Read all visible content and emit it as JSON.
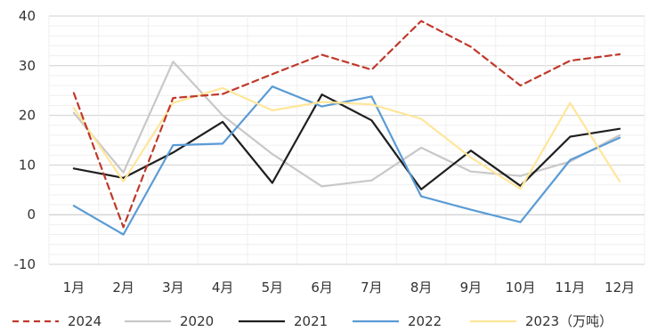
{
  "chart_data": {
    "type": "line",
    "categories": [
      "1月",
      "2月",
      "3月",
      "4月",
      "5月",
      "6月",
      "7月",
      "8月",
      "9月",
      "10月",
      "11月",
      "12月"
    ],
    "ylim": [
      -10,
      40
    ],
    "yticks": [
      -10,
      0,
      10,
      20,
      30,
      40
    ],
    "grid": true,
    "legend_position": "bottom",
    "series": [
      {
        "name": "2024",
        "color": "#c0392b",
        "dashed": true,
        "values": [
          24.5,
          -2.5,
          23.5,
          24.3,
          28.3,
          32.2,
          29.2,
          39.0,
          33.8,
          26.0,
          31.0,
          32.3
        ]
      },
      {
        "name": "2020",
        "color": "#c8c8c8",
        "dashed": false,
        "values": [
          20.5,
          8.5,
          30.8,
          20.0,
          12.2,
          5.7,
          6.9,
          13.5,
          8.7,
          7.8,
          10.7,
          16.0
        ]
      },
      {
        "name": "2021",
        "color": "#1f1f1f",
        "dashed": false,
        "values": [
          9.3,
          7.4,
          12.5,
          18.7,
          6.4,
          24.2,
          19.0,
          5.1,
          12.9,
          5.8,
          15.7,
          17.3
        ]
      },
      {
        "name": "2022",
        "color": "#5b9bd5",
        "dashed": false,
        "values": [
          1.8,
          -4.0,
          14.0,
          14.3,
          25.8,
          21.8,
          23.8,
          3.7,
          1.0,
          -1.5,
          11.0,
          15.5
        ]
      },
      {
        "name": "2023（万吨）",
        "color": "#ffe699",
        "dashed": false,
        "values": [
          21.5,
          6.7,
          22.5,
          25.5,
          21.0,
          22.7,
          22.2,
          19.3,
          11.5,
          5.2,
          22.5,
          6.7
        ]
      }
    ]
  }
}
